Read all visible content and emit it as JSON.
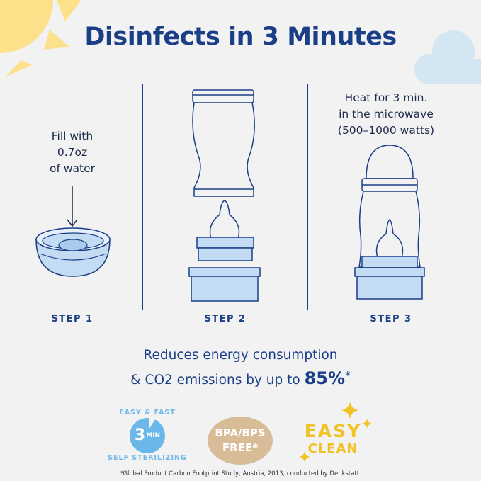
{
  "title": "Disinfects in 3 Minutes",
  "steps": [
    {
      "label": "STEP 1",
      "instruction": [
        "Fill with",
        "0.7oz",
        "of water"
      ]
    },
    {
      "label": "STEP 2"
    },
    {
      "label": "STEP 3",
      "instruction": [
        "Heat for 3 min.",
        "in the microwave",
        "(500–1000 watts)"
      ]
    }
  ],
  "energy": {
    "line1": "Reduces energy consumption",
    "line2": "& CO2 emissions by up to ",
    "highlight": "85%",
    "mark": "*"
  },
  "badges": {
    "sterilizing": {
      "number": "3",
      "unit": "MIN",
      "top_text": "EASY & FAST",
      "bottom_text": "SELF STERILIZING"
    },
    "bpa": {
      "line1": "BPA/BPS",
      "line2": "FREE*"
    },
    "clean": {
      "line1": "EASY",
      "line2": "CLEAN"
    }
  },
  "footnote": "*Global Product Carbon Footprint Study, Austria, 2013, conducted by Denkstatt.",
  "colors": {
    "navy": "#1b3f87",
    "background": "#f2f2f2",
    "bottle_blue": "#c3dcf3",
    "sun": "#fde08a",
    "cloud": "#d3e6f2",
    "badge_blue": "#6bb7ea",
    "badge_tan": "#d8bc98",
    "yellow": "#f0c224"
  }
}
